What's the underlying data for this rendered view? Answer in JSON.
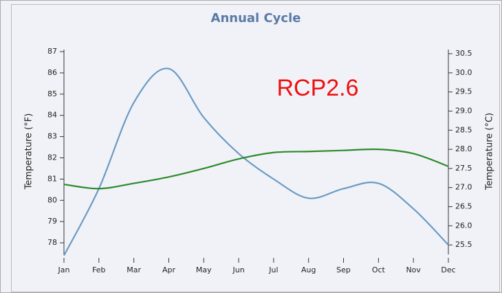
{
  "chart_data": {
    "type": "line",
    "title": "Annual Cycle",
    "annotation": "RCP2.6",
    "ylabel": "Temperature (°F)",
    "y2label": "Temperature (°C)",
    "categories": [
      "Jan",
      "Feb",
      "Mar",
      "Apr",
      "May",
      "Jun",
      "Jul",
      "Aug",
      "Sep",
      "Oct",
      "Nov",
      "Dec"
    ],
    "series": [
      {
        "color": "#6a9ac4",
        "values": [
          77.4,
          80.55,
          84.6,
          86.2,
          83.9,
          82.2,
          81.0,
          80.1,
          80.55,
          80.8,
          79.6,
          77.9
        ]
      },
      {
        "color": "#2a8a2a",
        "values": [
          80.75,
          80.55,
          80.8,
          81.1,
          81.5,
          81.95,
          82.25,
          82.3,
          82.35,
          82.4,
          82.2,
          81.6
        ]
      }
    ],
    "ylim": [
      77.45,
      87.1
    ],
    "yticks": [
      78,
      79,
      80,
      81,
      82,
      83,
      84,
      85,
      86,
      87
    ],
    "y2lim": [
      25.25,
      30.61
    ],
    "y2ticks": [
      25.5,
      {
        "value": 26,
        "label": "26.0"
      },
      26.5,
      {
        "value": 27,
        "label": "27.0"
      },
      27.5,
      {
        "value": 28,
        "label": "28.0"
      },
      28.5,
      {
        "value": 29,
        "label": "29.0"
      },
      29.5,
      {
        "value": 30,
        "label": "30.0"
      },
      30.5
    ]
  }
}
